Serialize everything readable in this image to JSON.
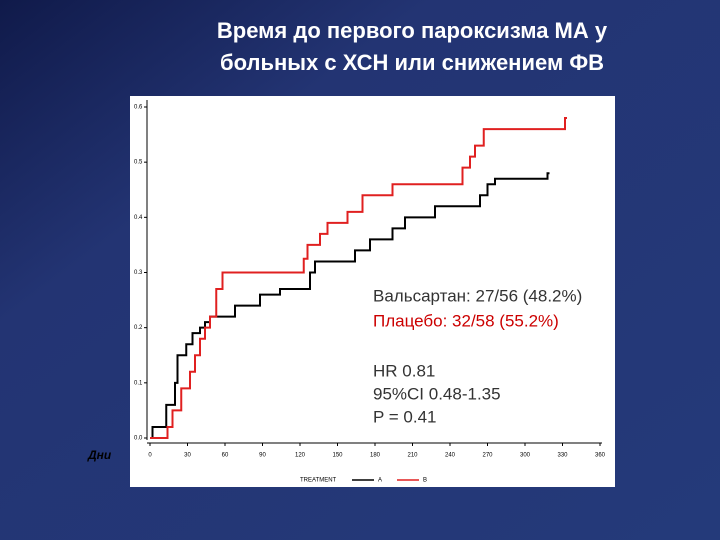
{
  "chart_data": {
    "type": "step",
    "title_lines": [
      "Время до первого пароксизма МА у",
      "больных с ХСН или снижением ФВ"
    ],
    "x_label": "Дни",
    "xlim": [
      0,
      360
    ],
    "xticks": [
      0,
      30,
      60,
      90,
      120,
      150,
      180,
      210,
      240,
      270,
      300,
      330,
      360
    ],
    "ylim": [
      0,
      0.6
    ],
    "yticks": [
      {
        "value": 0,
        "label": "0.0"
      },
      0.1,
      0.2,
      0.3,
      0.4,
      0.5,
      0.6
    ],
    "legend_title": "TREATMENT",
    "series": [
      {
        "name": "A",
        "color": "#000000",
        "x": [
          0,
          2,
          13,
          20,
          22,
          29,
          34,
          40,
          44,
          48,
          68,
          88,
          104,
          128,
          132,
          164,
          176,
          194,
          204,
          228,
          264,
          270,
          276,
          318
        ],
        "values": [
          0,
          0.02,
          0.06,
          0.1,
          0.15,
          0.17,
          0.19,
          0.2,
          0.21,
          0.22,
          0.24,
          0.26,
          0.27,
          0.3,
          0.32,
          0.34,
          0.36,
          0.38,
          0.4,
          0.42,
          0.44,
          0.46,
          0.47,
          0.48
        ]
      },
      {
        "name": "B",
        "color": "#e02020",
        "x": [
          0,
          14,
          18,
          25,
          32,
          36,
          40,
          44,
          48,
          53,
          58,
          123,
          126,
          136,
          142,
          158,
          170,
          194,
          250,
          256,
          260,
          267,
          332
        ],
        "values": [
          0,
          0.02,
          0.05,
          0.09,
          0.12,
          0.15,
          0.18,
          0.2,
          0.22,
          0.27,
          0.3,
          0.325,
          0.35,
          0.37,
          0.39,
          0.41,
          0.44,
          0.46,
          0.49,
          0.51,
          0.53,
          0.56,
          0.58
        ]
      }
    ],
    "annotations": [
      {
        "text": "Вальсартан: 27/56 (48.2%)",
        "color": "#333333"
      },
      {
        "text": "Плацебо: 32/58 (55.2%)",
        "color": "#cc0000"
      },
      {
        "text": "HR 0.81",
        "color": "#333333"
      },
      {
        "text": "95%CI 0.48-1.35",
        "color": "#333333"
      },
      {
        "text": "P = 0.41",
        "color": "#333333"
      }
    ]
  }
}
